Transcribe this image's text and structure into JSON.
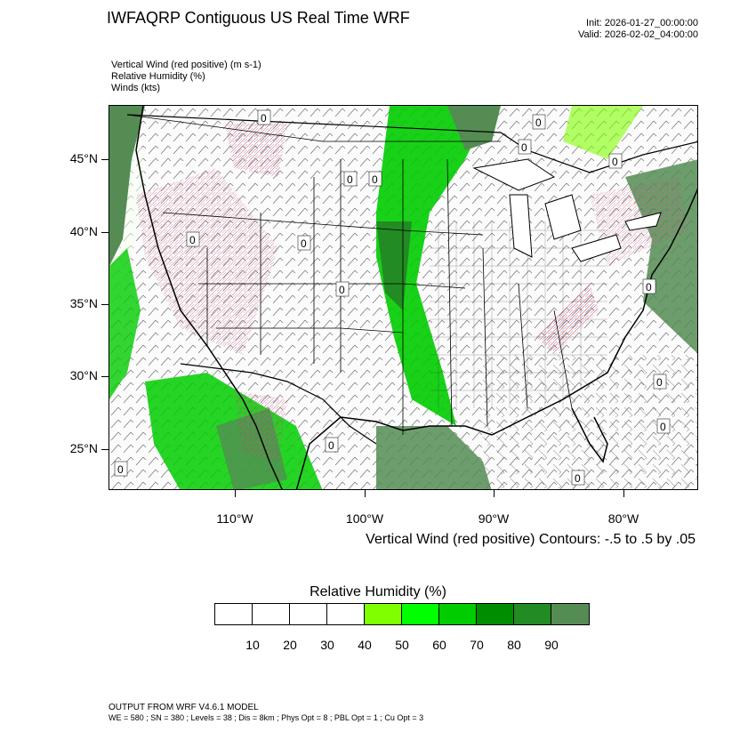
{
  "header": {
    "title": "IWFAQRP Contiguous US Real Time WRF",
    "init": "Init: 2026-01-27_00:00:00",
    "valid": "Valid: 2026-02-02_04:00:00"
  },
  "fields": [
    "Vertical Wind (red positive)   (m s-1)",
    "Relative Humidity   (%)",
    "Winds   (kts)"
  ],
  "map": {
    "lat_labels": [
      "45°N",
      "40°N",
      "35°N",
      "30°N",
      "25°N"
    ],
    "lon_labels": [
      "110°W",
      "100°W",
      "90°W",
      "80°W"
    ],
    "contour_value": "0"
  },
  "contour_note": "Vertical Wind (red positive) Contours: -.5 to .5 by .05",
  "colorbar": {
    "title": "Relative Humidity  (%)",
    "labels": [
      "10",
      "20",
      "30",
      "40",
      "50",
      "60",
      "70",
      "80",
      "90"
    ],
    "colors": [
      "#ffffff",
      "#ffffff",
      "#ffffff",
      "#ffffff",
      "#80ff00",
      "#00ff00",
      "#00cc00",
      "#008c00",
      "#238b23",
      "#548c54"
    ]
  },
  "footer": {
    "line1": "OUTPUT FROM WRF V4.6.1 MODEL",
    "line2": "WE = 580 ; SN = 380 ; Levels = 38 ; Dis = 8km ; Phys Opt = 8 ; PBL Opt = 1 ; Cu Opt = 3"
  }
}
